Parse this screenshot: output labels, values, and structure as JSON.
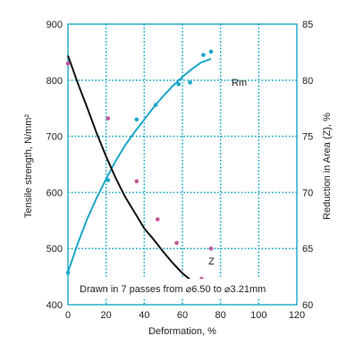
{
  "chart_data": {
    "type": "line",
    "xlabel": "Deformation, %",
    "ylabel": "Tensile strength, N/mm²",
    "y2label": "Reduction in Area (Z), %",
    "xlim": [
      0,
      120
    ],
    "ylim": [
      400,
      900
    ],
    "y2lim": [
      60,
      85
    ],
    "x_ticks": [
      0,
      20,
      40,
      60,
      80,
      100,
      120
    ],
    "y_ticks": [
      400,
      500,
      600,
      700,
      800,
      900
    ],
    "y2_ticks": [
      60,
      65,
      70,
      75,
      80,
      85
    ],
    "grid": true,
    "annotation": "Drawn  in 7 passes from ⌀6.50 to ⌀3.21mm",
    "colors": {
      "rm": "#1aa7c9",
      "z": "#111111",
      "z_points": "#c0569a",
      "grid": "#1aa7c9",
      "frame": "#1aa7c9"
    },
    "series": [
      {
        "name": "Rm",
        "axis": "left",
        "curve_x": [
          0,
          5,
          10,
          15,
          20,
          25,
          30,
          35,
          40,
          45,
          50,
          55,
          60,
          65,
          70,
          75
        ],
        "curve_y": [
          458,
          508,
          552,
          590,
          624,
          656,
          684,
          708,
          730,
          752,
          772,
          790,
          806,
          820,
          832,
          838
        ],
        "points": [
          {
            "x": 0,
            "y": 457
          },
          {
            "x": 21,
            "y": 622
          },
          {
            "x": 36,
            "y": 730
          },
          {
            "x": 46,
            "y": 756
          },
          {
            "x": 58,
            "y": 793
          },
          {
            "x": 64,
            "y": 796
          },
          {
            "x": 71,
            "y": 845
          },
          {
            "x": 75,
            "y": 851
          }
        ]
      },
      {
        "name": "Z",
        "axis": "right",
        "curve_x": [
          0,
          5,
          10,
          15,
          20,
          25,
          30,
          35,
          40,
          45,
          50,
          55,
          60,
          65,
          70
        ],
        "curve_y": [
          82.2,
          79.8,
          77.6,
          75.3,
          73.2,
          71.3,
          69.6,
          68.2,
          66.8,
          65.8,
          64.7,
          63.7,
          62.8,
          62.1,
          61.4
        ],
        "points": [
          {
            "x": 0,
            "y": 81.5
          },
          {
            "x": 21,
            "y": 76.6
          },
          {
            "x": 36,
            "y": 71.0
          },
          {
            "x": 47,
            "y": 67.6
          },
          {
            "x": 57,
            "y": 65.5
          },
          {
            "x": 70,
            "y": 62.3
          },
          {
            "x": 75,
            "y": 65.0
          }
        ]
      }
    ]
  }
}
